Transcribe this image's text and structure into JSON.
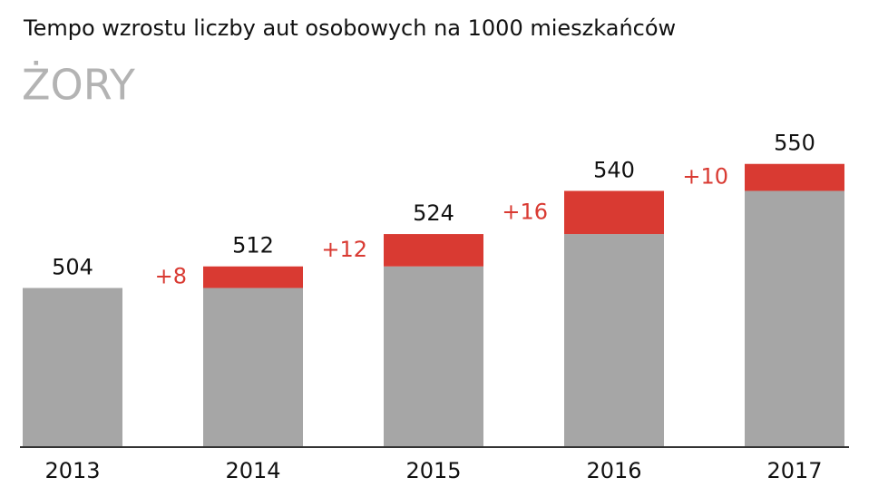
{
  "chart_data": {
    "type": "bar",
    "title": "Tempo wzrostu liczby aut osobowych na 1000 mieszkańców",
    "subtitle": "ŻORY",
    "categories": [
      "2013",
      "2014",
      "2015",
      "2016",
      "2017"
    ],
    "series": [
      {
        "color": "#a6a6a6",
        "values": [
          504,
          504,
          512,
          524,
          540
        ]
      },
      {
        "color": "#d93a32",
        "values": [
          null,
          8,
          12,
          16,
          10
        ],
        "value_labels": [
          null,
          "+8",
          "+12",
          "+16",
          "+10"
        ]
      }
    ],
    "totals": [
      504,
      512,
      524,
      540,
      550
    ],
    "ylim": [
      445,
      560
    ]
  }
}
